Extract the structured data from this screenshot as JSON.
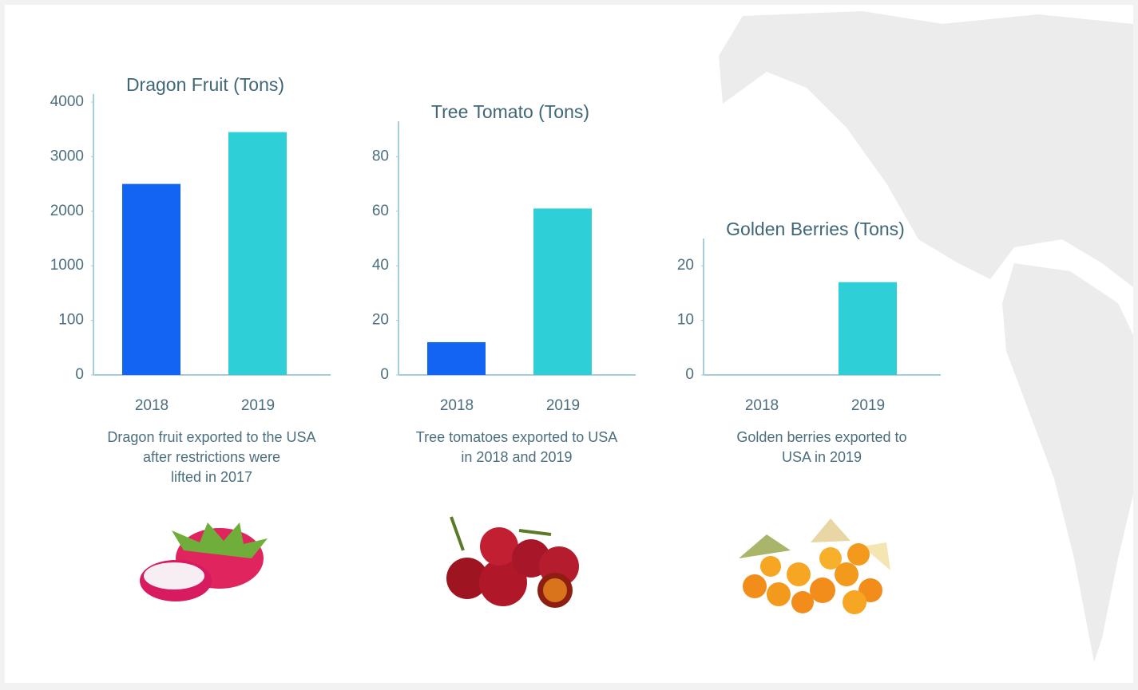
{
  "chart_data": [
    {
      "type": "bar",
      "title": "Dragon Fruit (Tons)",
      "categories": [
        "2018",
        "2019"
      ],
      "values": [
        2500,
        3450
      ],
      "colors": [
        "#1464f4",
        "#2ecfd6"
      ],
      "ylim": [
        0,
        4150
      ],
      "yticks": [
        0,
        100,
        1000,
        2000,
        3000,
        4000
      ],
      "caption": [
        "Dragon fruit exported to the USA",
        "after restrictions were",
        "lifted in 2017"
      ]
    },
    {
      "type": "bar",
      "title": "Tree Tomato (Tons)",
      "categories": [
        "2018",
        "2019"
      ],
      "values": [
        12,
        61
      ],
      "colors": [
        "#1464f4",
        "#2ecfd6"
      ],
      "ylim": [
        0,
        93
      ],
      "yticks": [
        0,
        20,
        40,
        60,
        80
      ],
      "caption": [
        "Tree tomatoes exported to USA",
        "in 2018 and 2019"
      ]
    },
    {
      "type": "bar",
      "title": "Golden Berries (Tons)",
      "categories": [
        "2018",
        "2019"
      ],
      "values": [
        0,
        17
      ],
      "colors": [
        "#1464f4",
        "#2ecfd6"
      ],
      "ylim": [
        0,
        25
      ],
      "yticks": [
        0,
        10,
        20
      ],
      "caption": [
        "Golden berries exported to",
        "USA in 2019"
      ]
    }
  ]
}
